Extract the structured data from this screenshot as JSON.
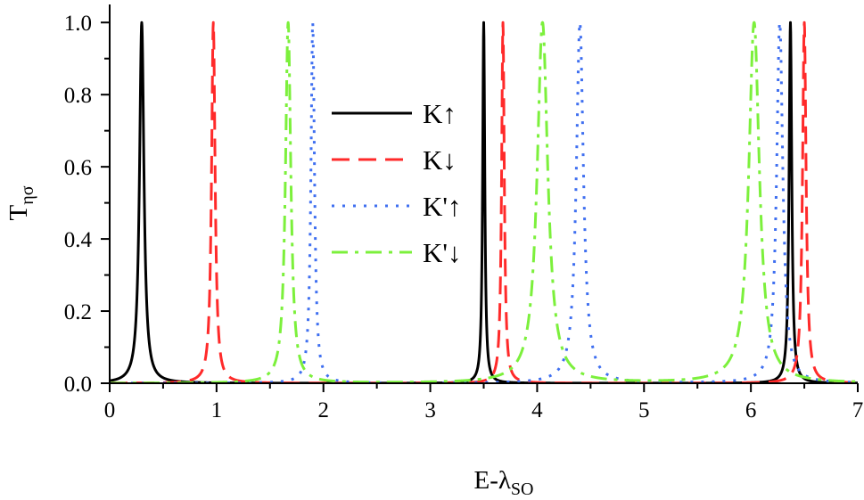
{
  "chart_data": {
    "type": "line",
    "xlabel": "E-λ",
    "xlabel_sub": "SO",
    "ylabel": "T",
    "ylabel_sub": "ησ",
    "xlim": [
      0,
      7
    ],
    "ylim": [
      0,
      1.05
    ],
    "x_ticks": [
      "0",
      "1",
      "2",
      "3",
      "4",
      "5",
      "6",
      "7"
    ],
    "y_ticks": [
      "0.0",
      "0.2",
      "0.4",
      "0.6",
      "0.8",
      "1.0"
    ],
    "grid": false,
    "legend_position": "center",
    "series": [
      {
        "name": "K↑",
        "color": "#000000",
        "dash": "solid",
        "peaks": [
          {
            "x": 0.3,
            "width": 0.025
          },
          {
            "x": 3.5,
            "width": 0.012
          },
          {
            "x": 6.37,
            "width": 0.015
          }
        ],
        "baseline": 0.0
      },
      {
        "name": "K↓",
        "color": "#ff2a2a",
        "dash": "dashed",
        "peaks": [
          {
            "x": 0.97,
            "width": 0.02
          },
          {
            "x": 3.68,
            "width": 0.015
          },
          {
            "x": 6.5,
            "width": 0.02
          }
        ],
        "baseline": 0.0
      },
      {
        "name": "K'↑",
        "color": "#3f6ff0",
        "dash": "dotted",
        "peaks": [
          {
            "x": 1.9,
            "width": 0.02
          },
          {
            "x": 4.4,
            "width": 0.04
          },
          {
            "x": 6.27,
            "width": 0.035
          }
        ],
        "baseline": 0.0
      },
      {
        "name": "K'↓",
        "color": "#7cf03c",
        "dash": "dashdot",
        "peaks": [
          {
            "x": 1.67,
            "width": 0.03
          },
          {
            "x": 4.05,
            "width": 0.06
          },
          {
            "x": 6.03,
            "width": 0.06
          }
        ],
        "baseline": 0.0
      }
    ]
  }
}
